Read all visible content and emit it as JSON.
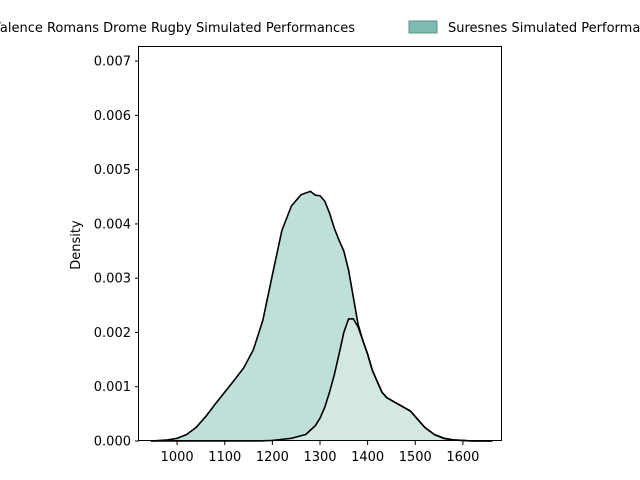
{
  "chart_data": {
    "type": "area",
    "title": "",
    "xlabel": "",
    "ylabel": "Density",
    "xlim": [
      920,
      1680
    ],
    "ylim": [
      0,
      0.00726
    ],
    "xticks": [
      1000,
      1100,
      1200,
      1300,
      1400,
      1500,
      1600
    ],
    "yticks": [
      0.0,
      0.001,
      0.002,
      0.003,
      0.004,
      0.005,
      0.006,
      0.007
    ],
    "ytick_labels": [
      "0.000",
      "0.001",
      "0.002",
      "0.003",
      "0.004",
      "0.005",
      "0.006",
      "0.007"
    ],
    "legend_position": "top-center",
    "stacked": true,
    "series": [
      {
        "name": "Valence Romans Drome Rugby Simulated Performances",
        "color": "#ffffff",
        "x": [
          1165,
          1200,
          1240,
          1270,
          1290,
          1300,
          1310,
          1320,
          1330,
          1340,
          1350,
          1360,
          1370,
          1380,
          1390,
          1400,
          1410,
          1420,
          1430,
          1440,
          1450,
          1460,
          1470,
          1480,
          1490,
          1500,
          1510,
          1520,
          1540,
          1560,
          1580,
          1600,
          1620,
          1640,
          1662
        ],
        "y": [
          0.0,
          1e-05,
          5e-05,
          0.00012,
          0.00028,
          0.00042,
          0.00062,
          0.0009,
          0.00122,
          0.0016,
          0.002,
          0.00225,
          0.00225,
          0.0021,
          0.00185,
          0.0016,
          0.0013,
          0.0011,
          0.0009,
          0.0008,
          0.00075,
          0.0007,
          0.00065,
          0.0006,
          0.00055,
          0.00045,
          0.00035,
          0.00025,
          0.00012,
          5e-05,
          2e-05,
          1e-05,
          0.0,
          0.0,
          0.0
        ]
      },
      {
        "name": "Suresnes Simulated Performances",
        "color": "#7ebcb0",
        "x": [
          945,
          980,
          1000,
          1020,
          1040,
          1060,
          1080,
          1100,
          1120,
          1140,
          1160,
          1180,
          1200,
          1220,
          1240,
          1260,
          1270,
          1280,
          1300,
          1310,
          1320,
          1330,
          1340,
          1350,
          1360,
          1370,
          1380,
          1390,
          1400,
          1410,
          1420,
          1430,
          1440,
          1450,
          1460,
          1470,
          1480,
          1490,
          1500,
          1510,
          1520,
          1540,
          1560,
          1580,
          1600,
          1620,
          1640,
          1662
        ],
        "y": [
          0.0,
          2e-05,
          5e-05,
          0.00012,
          0.00025,
          0.00045,
          0.00068,
          0.0009,
          0.00112,
          0.00135,
          0.00168,
          0.00222,
          0.00305,
          0.00385,
          0.00428,
          0.00444,
          0.00445,
          0.0044,
          0.0041,
          0.0038,
          0.0033,
          0.0027,
          0.0021,
          0.0015,
          0.0009,
          0.0004,
          5e-05,
          0.0,
          0.0,
          0.0,
          0.0,
          0.0,
          0.0,
          0.0,
          0.0,
          0.0,
          0.0,
          0.0,
          0.0,
          0.0,
          0.0,
          0.0,
          0.0,
          0.0,
          0.0,
          0.0,
          0.0,
          0.0
        ]
      }
    ]
  }
}
